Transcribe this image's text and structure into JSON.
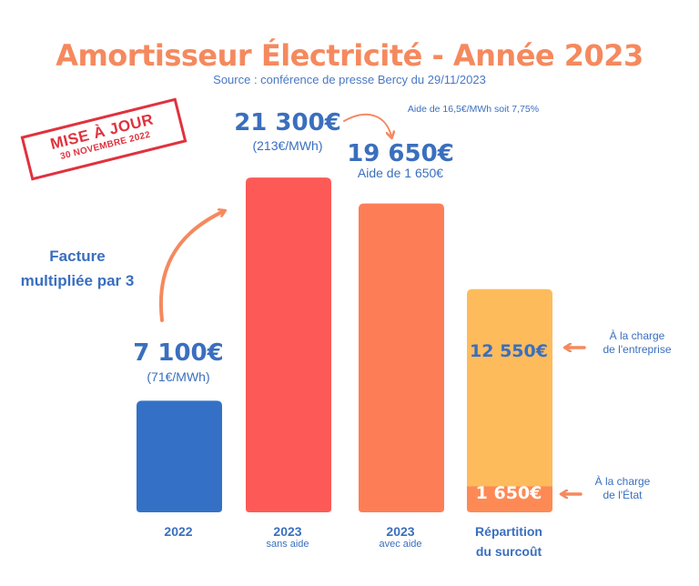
{
  "title": "Amortisseur Électricité - Année 2023",
  "subtitle": "Source : conférence de presse Bercy du 29/11/2023",
  "stamp": {
    "line1": "MISE À JOUR",
    "line2": "30 NOVEMBRE 2022"
  },
  "factor_note": {
    "line1": "Facture",
    "line2": "multipliée par 3"
  },
  "aid_note": "Aide de 16,5€/MWh soit 7,75%",
  "colors": {
    "blue": "#3471c6",
    "red": "#fd5a57",
    "orange": "#fd7e56",
    "yellow": "#fdbb5c",
    "yellow_dark": "#fd8a55",
    "arrow": "#f5895e",
    "text": "#3a6fbe"
  },
  "chart_data": {
    "type": "bar",
    "ylim": [
      0,
      22000
    ],
    "bars": [
      {
        "category": "2022",
        "subcategory": "",
        "value": 7100,
        "value_label": "7 100€",
        "detail": "(71€/MWh)",
        "color": "#3471c6"
      },
      {
        "category": "2023",
        "subcategory": "sans aide",
        "value": 21300,
        "value_label": "21 300€",
        "detail": "(213€/MWh)",
        "color": "#fd5a57"
      },
      {
        "category": "2023",
        "subcategory": "avec aide",
        "value": 19650,
        "value_label": "19 650€",
        "detail": "Aide de 1 650€",
        "color": "#fd7e56"
      },
      {
        "category": "Répartition",
        "category_line2": "du surcoût",
        "stacked": true,
        "segments": [
          {
            "value": 1650,
            "label": "1 650€",
            "note_line1": "À la charge",
            "note_line2": "de l'État",
            "color": "#fd8a55"
          },
          {
            "value": 12550,
            "label": "12 550€",
            "note_line1": "À la charge",
            "note_line2": "de l'entreprise",
            "color": "#fdbb5c"
          }
        ]
      }
    ]
  }
}
